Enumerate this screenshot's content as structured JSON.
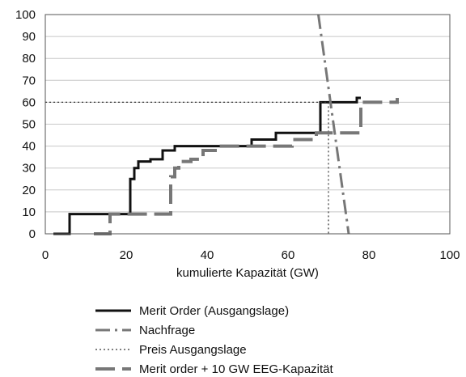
{
  "chart_data": {
    "type": "line",
    "xlabel": "kumulierte Kapazität (GW)",
    "ylabel": "",
    "xlim": [
      0,
      100
    ],
    "ylim": [
      0,
      100
    ],
    "x_ticks": [
      0,
      20,
      40,
      60,
      80,
      100
    ],
    "y_ticks": [
      0,
      10,
      20,
      30,
      40,
      50,
      60,
      70,
      80,
      90,
      100
    ],
    "grid": "horizontal",
    "legend_position": "bottom",
    "series": [
      {
        "name": "Merit Order (Ausgangslage)",
        "style": "solid",
        "color": "#111111",
        "points": [
          [
            2,
            0
          ],
          [
            6,
            0
          ],
          [
            6,
            9
          ],
          [
            21,
            9
          ],
          [
            21,
            25
          ],
          [
            22,
            25
          ],
          [
            22,
            30
          ],
          [
            23,
            30
          ],
          [
            23,
            33
          ],
          [
            26,
            33
          ],
          [
            26,
            34
          ],
          [
            29,
            34
          ],
          [
            29,
            38
          ],
          [
            32,
            38
          ],
          [
            32,
            40
          ],
          [
            51,
            40
          ],
          [
            51,
            43
          ],
          [
            57,
            43
          ],
          [
            57,
            46
          ],
          [
            68,
            46
          ],
          [
            68,
            60
          ],
          [
            77,
            60
          ],
          [
            77,
            62
          ],
          [
            78,
            62
          ]
        ]
      },
      {
        "name": "Nachfrage",
        "style": "dash-dot",
        "color": "#777777",
        "points": [
          [
            67.5,
            100
          ],
          [
            75,
            0
          ]
        ]
      },
      {
        "name": "Preis Ausgangslage",
        "style": "dotted",
        "color": "#333333",
        "points": [
          [
            0,
            60
          ],
          [
            70,
            60
          ],
          [
            70,
            0
          ]
        ]
      },
      {
        "name": "Merit order + 10 GW EEG-Kapazität",
        "style": "long-dash",
        "color": "#777777",
        "points": [
          [
            12,
            0
          ],
          [
            16,
            0
          ],
          [
            16,
            9
          ],
          [
            31,
            9
          ],
          [
            31,
            26
          ],
          [
            32,
            26
          ],
          [
            32,
            30
          ],
          [
            33,
            30
          ],
          [
            33,
            33
          ],
          [
            36,
            33
          ],
          [
            36,
            34
          ],
          [
            39,
            34
          ],
          [
            39,
            38
          ],
          [
            42,
            38
          ],
          [
            42,
            40
          ],
          [
            61,
            40
          ],
          [
            61,
            43
          ],
          [
            67,
            43
          ],
          [
            67,
            46
          ],
          [
            78,
            46
          ],
          [
            78,
            60
          ],
          [
            87,
            60
          ],
          [
            87,
            62
          ]
        ]
      }
    ]
  }
}
